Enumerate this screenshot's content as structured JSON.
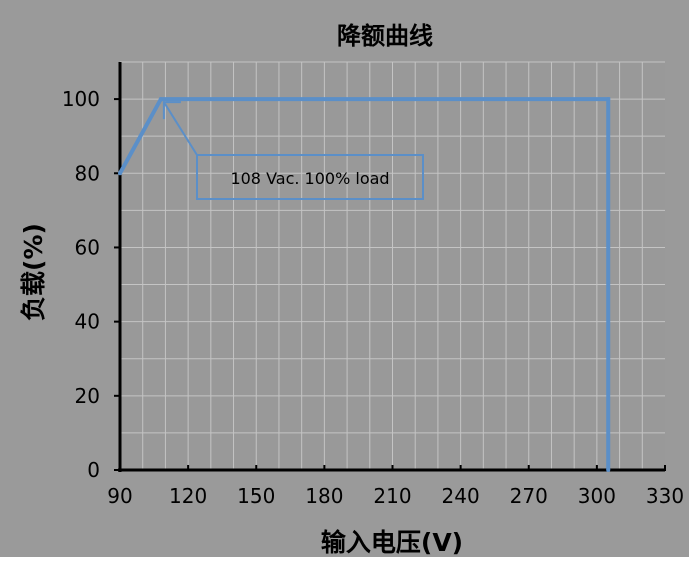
{
  "chart_data": {
    "type": "line",
    "title": "降额曲线",
    "xlabel": "输入电压(V)",
    "ylabel": "负载(%)",
    "xlim": [
      90,
      330
    ],
    "ylim": [
      0,
      110
    ],
    "x_ticks": [
      "90",
      "120",
      "150",
      "180",
      "210",
      "240",
      "270",
      "300",
      "330"
    ],
    "y_ticks": [
      "0",
      "20",
      "40",
      "60",
      "80",
      "100"
    ],
    "grid": true,
    "series": [
      {
        "x": [
          90,
          108,
          305,
          305
        ],
        "y": [
          80,
          100,
          100,
          0
        ]
      }
    ],
    "annotation": {
      "text": "108 Vac. 100% load",
      "points_to": [
        108,
        100
      ]
    },
    "colors": {
      "plot_background": "#999999",
      "outer_background": "#9a9a9a",
      "line": "#5b8fc8",
      "grid": "#c4c4c4",
      "axis": "#000000"
    }
  }
}
